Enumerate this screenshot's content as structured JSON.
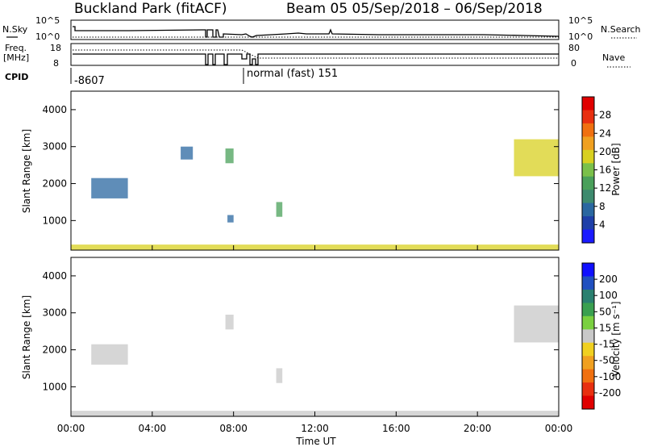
{
  "header": {
    "title_left": "Buckland Park (fitACF)",
    "title_right": "Beam 05  05/Sep/2018 – 06/Sep/2018"
  },
  "summary": {
    "nsky_label": "N.Sky",
    "nsearch_label": "N.Search",
    "nave_label": "Nave",
    "freq_label_line1": "Freq.",
    "freq_label_line2": "[MHz]",
    "cpid_label": "CPID",
    "left_top_tick": "10^5",
    "left_bottom_tick": "10^0",
    "right_top_tick": "10^5",
    "right_bottom_tick": "10^0",
    "freq_ticks": [
      "18",
      "8"
    ],
    "nave_ticks": [
      "80",
      "0"
    ],
    "cpid_value": "-8607",
    "mode_label": "normal (fast) 151"
  },
  "xaxis": {
    "label": "Time UT",
    "ticks": [
      "00:00",
      "04:00",
      "08:00",
      "12:00",
      "16:00",
      "20:00",
      "00:00"
    ]
  },
  "colors": {
    "power_colorbar": [
      "#1a1aff",
      "#1e3fa8",
      "#2a67a0",
      "#3d8a6e",
      "#4aa05a",
      "#7ac04a",
      "#d8d020",
      "#f0a020",
      "#f07010",
      "#e83010",
      "#e00000"
    ],
    "velocity_colorbar": [
      "#1010ff",
      "#2050c0",
      "#2a8070",
      "#3aa050",
      "#7ad040",
      "#c8c8c8",
      "#f0d020",
      "#f0a020",
      "#f07010",
      "#e83010",
      "#e00000"
    ]
  },
  "chart_data": [
    {
      "type": "heatmap",
      "name": "power",
      "ylabel": "Slant Range [km]",
      "colorbar_label": "Power [dB]",
      "ylim": [
        200,
        4500
      ],
      "yticks": [
        "1000",
        "2000",
        "3000",
        "4000"
      ],
      "colorbar_ticks": [
        "4",
        "8",
        "12",
        "16",
        "20",
        "24",
        "28"
      ],
      "colorbar_range": [
        0,
        32
      ],
      "xlim_hours": [
        0,
        24
      ],
      "features": [
        {
          "t_start": 0.0,
          "t_end": 24.0,
          "range_start": 200,
          "range_end": 350,
          "value": 20
        },
        {
          "t_start": 1.0,
          "t_end": 2.8,
          "range_start": 1600,
          "range_end": 2150,
          "value": 6
        },
        {
          "t_start": 7.6,
          "t_end": 8.0,
          "range_start": 2550,
          "range_end": 2950,
          "value": 12
        },
        {
          "t_start": 7.7,
          "t_end": 8.0,
          "range_start": 950,
          "range_end": 1150,
          "value": 6
        },
        {
          "t_start": 10.1,
          "t_end": 10.4,
          "range_start": 1100,
          "range_end": 1500,
          "value": 12
        },
        {
          "t_start": 21.8,
          "t_end": 24.0,
          "range_start": 2200,
          "range_end": 3200,
          "value": 18
        },
        {
          "t_start": 5.4,
          "t_end": 6.0,
          "range_start": 2650,
          "range_end": 3000,
          "value": 6
        }
      ]
    },
    {
      "type": "heatmap",
      "name": "velocity",
      "ylabel": "Slant Range [km]",
      "colorbar_label": "Velocity [m s⁻¹]",
      "ylim": [
        200,
        4500
      ],
      "yticks": [
        "1000",
        "2000",
        "3000",
        "4000"
      ],
      "colorbar_ticks": [
        "200",
        "100",
        "50",
        "15",
        "-15",
        "-50",
        "-100",
        "-200"
      ],
      "xlim_hours": [
        0,
        24
      ],
      "features": [
        {
          "t_start": 0.0,
          "t_end": 24.0,
          "range_start": 200,
          "range_end": 350,
          "value": 0
        },
        {
          "t_start": 1.0,
          "t_end": 2.8,
          "range_start": 1600,
          "range_end": 2150,
          "value": 0
        },
        {
          "t_start": 7.6,
          "t_end": 8.0,
          "range_start": 2550,
          "range_end": 2950,
          "value": 0
        },
        {
          "t_start": 10.1,
          "t_end": 10.4,
          "range_start": 1100,
          "range_end": 1500,
          "value": 0
        },
        {
          "t_start": 21.8,
          "t_end": 24.0,
          "range_start": 2200,
          "range_end": 3200,
          "value": 0
        }
      ]
    }
  ]
}
